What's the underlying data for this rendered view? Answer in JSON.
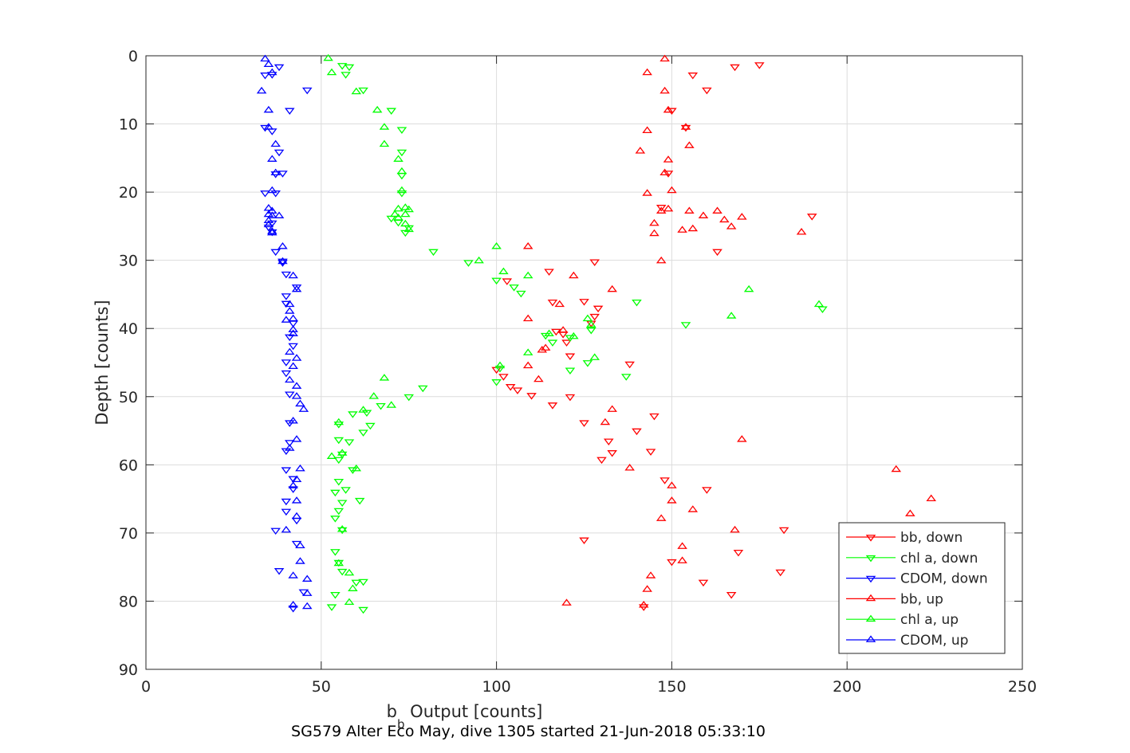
{
  "chart_data": {
    "type": "scatter",
    "title": "SG579 Alter Eco May, dive 1305 started 21-Jun-2018 05:33:10",
    "xlabel_main": "b",
    "xlabel_sub": "b",
    "xlabel_rest": " Output [counts]",
    "ylabel": "Depth [counts]",
    "xlim": [
      0,
      250
    ],
    "ylim": [
      0,
      90
    ],
    "y_reversed": true,
    "grid": true,
    "legend_position": "bottom-right",
    "x_ticks": [
      "0",
      "50",
      "100",
      "150",
      "200",
      "250"
    ],
    "y_ticks": [
      "0",
      "10",
      "20",
      "30",
      "40",
      "50",
      "60",
      "70",
      "80",
      "90"
    ],
    "series": [
      {
        "name": "bb, down",
        "color": "#ff0000",
        "marker": "triangle-down",
        "points": [
          [
            175,
            1.3
          ],
          [
            168,
            1.6
          ],
          [
            156,
            2.8
          ],
          [
            160,
            5
          ],
          [
            150,
            8
          ],
          [
            154,
            10.5
          ],
          [
            149,
            17.2
          ],
          [
            147,
            22.2
          ],
          [
            190,
            23.5
          ],
          [
            163,
            28.7
          ],
          [
            128,
            30.2
          ],
          [
            103,
            33
          ],
          [
            115,
            31.6
          ],
          [
            117,
            40.4
          ],
          [
            120,
            42
          ],
          [
            128,
            38.2
          ],
          [
            127,
            39.2
          ],
          [
            129,
            37
          ],
          [
            125,
            36
          ],
          [
            116,
            36.1
          ],
          [
            119,
            40.8
          ],
          [
            121,
            44
          ],
          [
            104,
            48.5
          ],
          [
            106,
            49
          ],
          [
            100,
            46
          ],
          [
            102,
            47
          ],
          [
            110,
            49.8
          ],
          [
            121,
            50
          ],
          [
            116,
            51.2
          ],
          [
            145,
            52.8
          ],
          [
            125,
            53.8
          ],
          [
            140,
            55
          ],
          [
            132,
            56.5
          ],
          [
            133,
            58.2
          ],
          [
            130,
            59.2
          ],
          [
            144,
            58
          ],
          [
            138,
            45.2
          ],
          [
            148,
            62.2
          ],
          [
            160,
            63.6
          ],
          [
            169,
            72.8
          ],
          [
            182,
            69.5
          ],
          [
            125,
            71
          ],
          [
            150,
            74.2
          ],
          [
            181,
            75.7
          ],
          [
            159,
            77.2
          ],
          [
            167,
            79
          ],
          [
            142,
            80.8
          ]
        ]
      },
      {
        "name": "chl a, down",
        "color": "#00ff00",
        "marker": "triangle-down",
        "points": [
          [
            56,
            1.4
          ],
          [
            58,
            1.6
          ],
          [
            57,
            2.7
          ],
          [
            62,
            5
          ],
          [
            70,
            8
          ],
          [
            73,
            10.8
          ],
          [
            73,
            14.1
          ],
          [
            73,
            17.5
          ],
          [
            73,
            20.1
          ],
          [
            70,
            23.8
          ],
          [
            72,
            24.4
          ],
          [
            75,
            25.2
          ],
          [
            74,
            25.9
          ],
          [
            82,
            28.7
          ],
          [
            92,
            30.3
          ],
          [
            100,
            32.9
          ],
          [
            105,
            33.9
          ],
          [
            107,
            34.8
          ],
          [
            140,
            36.1
          ],
          [
            193,
            37.1
          ],
          [
            154,
            39.4
          ],
          [
            127,
            40.2
          ],
          [
            121,
            41.3
          ],
          [
            116,
            42
          ],
          [
            114,
            41
          ],
          [
            121,
            46.1
          ],
          [
            126,
            45
          ],
          [
            101,
            45.8
          ],
          [
            100,
            47.8
          ],
          [
            137,
            47
          ],
          [
            79,
            48.7
          ],
          [
            75,
            50
          ],
          [
            67,
            51.3
          ],
          [
            63,
            52.3
          ],
          [
            59,
            52.5
          ],
          [
            64,
            54.2
          ],
          [
            62,
            55.2
          ],
          [
            55,
            54
          ],
          [
            58,
            56.6
          ],
          [
            55,
            56.3
          ],
          [
            56,
            58.4
          ],
          [
            55,
            59.2
          ],
          [
            59,
            60.7
          ],
          [
            55,
            62.4
          ],
          [
            57,
            63.6
          ],
          [
            54,
            64
          ],
          [
            56,
            65.5
          ],
          [
            61,
            65.2
          ],
          [
            55,
            66.7
          ],
          [
            54,
            67.8
          ],
          [
            56,
            69.5
          ],
          [
            54,
            72.7
          ],
          [
            55,
            74.3
          ],
          [
            56,
            75.6
          ],
          [
            60,
            77.2
          ],
          [
            62,
            77.1
          ],
          [
            54,
            79
          ],
          [
            53,
            80.8
          ],
          [
            62,
            81.2
          ]
        ]
      },
      {
        "name": "CDOM, down",
        "color": "#0000ff",
        "marker": "triangle-down",
        "points": [
          [
            38,
            1.6
          ],
          [
            34,
            2.8
          ],
          [
            36,
            2.7
          ],
          [
            46,
            5
          ],
          [
            41,
            8
          ],
          [
            34,
            10.5
          ],
          [
            36,
            11
          ],
          [
            38,
            14.1
          ],
          [
            37,
            17.3
          ],
          [
            39,
            17.2
          ],
          [
            34,
            20.1
          ],
          [
            37,
            20.1
          ],
          [
            36,
            24.5
          ],
          [
            36,
            25.8
          ],
          [
            35,
            25.1
          ],
          [
            37,
            28.7
          ],
          [
            39,
            30.1
          ],
          [
            39,
            30.3
          ],
          [
            40,
            32
          ],
          [
            43,
            33.9
          ],
          [
            40,
            35.2
          ],
          [
            40,
            36.3
          ],
          [
            42,
            39.2
          ],
          [
            41,
            41.2
          ],
          [
            42,
            42.5
          ],
          [
            40,
            44.9
          ],
          [
            40,
            46.5
          ],
          [
            41,
            49.6
          ],
          [
            41,
            53.8
          ],
          [
            41,
            56.7
          ],
          [
            40,
            57.9
          ],
          [
            40,
            60.7
          ],
          [
            42,
            62
          ],
          [
            42,
            63.5
          ],
          [
            40,
            65.3
          ],
          [
            40,
            66.8
          ],
          [
            43,
            68.1
          ],
          [
            37,
            69.6
          ],
          [
            43,
            71.5
          ],
          [
            38,
            75.5
          ],
          [
            45,
            78.6
          ],
          [
            42,
            81
          ]
        ]
      },
      {
        "name": "bb, up",
        "color": "#ff0000",
        "marker": "triangle-up",
        "points": [
          [
            148,
            0.5
          ],
          [
            143,
            2.5
          ],
          [
            148,
            5.2
          ],
          [
            149,
            8
          ],
          [
            143,
            11
          ],
          [
            154,
            10.5
          ],
          [
            141,
            14
          ],
          [
            155,
            13.2
          ],
          [
            149,
            15.3
          ],
          [
            148,
            17.2
          ],
          [
            143,
            20.2
          ],
          [
            149,
            22.5
          ],
          [
            150,
            19.8
          ],
          [
            147,
            22.8
          ],
          [
            155,
            22.8
          ],
          [
            159,
            23.5
          ],
          [
            163,
            22.8
          ],
          [
            165,
            24.1
          ],
          [
            170,
            23.7
          ],
          [
            167,
            25.1
          ],
          [
            153,
            25.6
          ],
          [
            156,
            25.4
          ],
          [
            145,
            24.6
          ],
          [
            145,
            26.1
          ],
          [
            187,
            25.9
          ],
          [
            147,
            30.1
          ],
          [
            109,
            28
          ],
          [
            122,
            32.3
          ],
          [
            133,
            34.3
          ],
          [
            118,
            36.5
          ],
          [
            109,
            38.6
          ],
          [
            119,
            40.3
          ],
          [
            113,
            43.2
          ],
          [
            114,
            42.9
          ],
          [
            109,
            45.5
          ],
          [
            112,
            47.5
          ],
          [
            133,
            51.9
          ],
          [
            131,
            53.8
          ],
          [
            170,
            56.3
          ],
          [
            138,
            60.5
          ],
          [
            150,
            63.1
          ],
          [
            150,
            65.3
          ],
          [
            156,
            66.6
          ],
          [
            147,
            67.9
          ],
          [
            168,
            69.6
          ],
          [
            153,
            72
          ],
          [
            153,
            74.1
          ],
          [
            144,
            76.3
          ],
          [
            143,
            78.3
          ],
          [
            142,
            80.6
          ],
          [
            120,
            80.3
          ],
          [
            218,
            67.2
          ],
          [
            224,
            65
          ],
          [
            214,
            60.7
          ]
        ]
      },
      {
        "name": "chl a, up",
        "color": "#00ff00",
        "marker": "triangle-up",
        "points": [
          [
            52,
            0.4
          ],
          [
            53,
            2.5
          ],
          [
            60,
            5.3
          ],
          [
            66,
            8
          ],
          [
            68,
            10.5
          ],
          [
            68,
            13
          ],
          [
            72,
            15.2
          ],
          [
            73,
            17
          ],
          [
            73,
            19.8
          ],
          [
            72,
            22.5
          ],
          [
            71,
            23.3
          ],
          [
            74,
            22.3
          ],
          [
            75,
            22.6
          ],
          [
            74,
            23.3
          ],
          [
            72,
            23.8
          ],
          [
            74,
            24.7
          ],
          [
            75,
            25.5
          ],
          [
            100,
            28
          ],
          [
            95,
            30.1
          ],
          [
            102,
            31.7
          ],
          [
            109,
            32.3
          ],
          [
            172,
            34.3
          ],
          [
            192,
            36.5
          ],
          [
            167,
            38.2
          ],
          [
            126,
            38.6
          ],
          [
            127,
            39.5
          ],
          [
            115,
            40.8
          ],
          [
            122,
            41.2
          ],
          [
            109,
            43.6
          ],
          [
            128,
            44.3
          ],
          [
            101,
            45.5
          ],
          [
            68,
            47.3
          ],
          [
            65,
            50
          ],
          [
            70,
            51.3
          ],
          [
            62,
            52
          ],
          [
            55,
            53.8
          ],
          [
            53,
            58.8
          ],
          [
            56,
            58.3
          ],
          [
            60,
            60.6
          ],
          [
            56,
            69.5
          ],
          [
            55,
            74.5
          ],
          [
            58,
            75.9
          ],
          [
            59,
            78.2
          ],
          [
            58,
            80.2
          ]
        ]
      },
      {
        "name": "CDOM, up",
        "color": "#0000ff",
        "marker": "triangle-up",
        "points": [
          [
            34,
            0.5
          ],
          [
            35,
            1.3
          ],
          [
            36,
            2.5
          ],
          [
            33,
            5.2
          ],
          [
            35,
            8
          ],
          [
            35,
            10.5
          ],
          [
            37,
            13
          ],
          [
            36,
            15.2
          ],
          [
            37,
            17.2
          ],
          [
            36,
            19.8
          ],
          [
            35,
            22.4
          ],
          [
            36,
            22.8
          ],
          [
            35,
            23.3
          ],
          [
            36,
            23.5
          ],
          [
            38,
            23.5
          ],
          [
            35,
            24.2
          ],
          [
            35,
            24.8
          ],
          [
            36,
            25.8
          ],
          [
            36,
            26
          ],
          [
            39,
            28
          ],
          [
            39,
            30.2
          ],
          [
            42,
            32.3
          ],
          [
            43,
            34.3
          ],
          [
            41,
            36.5
          ],
          [
            41,
            37.5
          ],
          [
            42,
            38.6
          ],
          [
            40,
            38.8
          ],
          [
            42,
            40.2
          ],
          [
            42,
            40.8
          ],
          [
            41,
            43.5
          ],
          [
            43,
            44.4
          ],
          [
            42,
            45.6
          ],
          [
            41,
            47.6
          ],
          [
            43,
            48.5
          ],
          [
            43,
            50
          ],
          [
            44,
            51.1
          ],
          [
            45,
            51.9
          ],
          [
            42,
            53.6
          ],
          [
            43,
            56.3
          ],
          [
            41,
            57.6
          ],
          [
            44,
            60.6
          ],
          [
            43,
            62.2
          ],
          [
            42,
            63.1
          ],
          [
            43,
            65.3
          ],
          [
            43,
            67.6
          ],
          [
            40,
            69.6
          ],
          [
            44,
            71.9
          ],
          [
            44,
            74.2
          ],
          [
            42,
            76.3
          ],
          [
            46,
            76.8
          ],
          [
            46,
            78.9
          ],
          [
            46,
            80.8
          ],
          [
            42,
            80.6
          ]
        ]
      }
    ]
  }
}
